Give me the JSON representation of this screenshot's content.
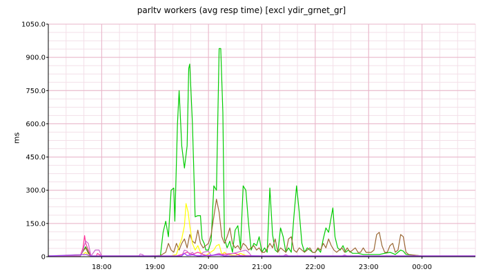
{
  "chart_data": {
    "type": "line",
    "title": "parltv workers (avg resp time) [excl ydir_grnet_gr]",
    "ylabel": "ms",
    "xlabel": "",
    "ylim": [
      0,
      1050
    ],
    "xlim": [
      17.0,
      25.0
    ],
    "grid": true,
    "legend": "none",
    "y_ticks": [
      "0",
      "150.0",
      "300.0",
      "450.0",
      "600.0",
      "750.0",
      "900.0",
      "1050.0"
    ],
    "y_tick_values": [
      0,
      150,
      300,
      450,
      600,
      750,
      900,
      1050
    ],
    "x_ticks": [
      "18:00",
      "19:00",
      "20:00",
      "21:00",
      "22:00",
      "23:00",
      "00:00"
    ],
    "x_tick_values": [
      18,
      19,
      20,
      21,
      22,
      23,
      24
    ],
    "series": [
      {
        "color": "#00cc00",
        "points": [
          [
            17.0,
            3
          ],
          [
            17.6,
            3
          ],
          [
            17.65,
            25
          ],
          [
            17.7,
            45
          ],
          [
            17.75,
            20
          ],
          [
            17.8,
            3
          ],
          [
            18.6,
            3
          ],
          [
            18.9,
            3
          ],
          [
            19.1,
            5
          ],
          [
            19.15,
            110
          ],
          [
            19.2,
            160
          ],
          [
            19.25,
            90
          ],
          [
            19.3,
            300
          ],
          [
            19.35,
            310
          ],
          [
            19.37,
            160
          ],
          [
            19.42,
            600
          ],
          [
            19.45,
            750
          ],
          [
            19.5,
            500
          ],
          [
            19.55,
            400
          ],
          [
            19.6,
            500
          ],
          [
            19.63,
            850
          ],
          [
            19.65,
            870
          ],
          [
            19.7,
            600
          ],
          [
            19.75,
            180
          ],
          [
            19.8,
            185
          ],
          [
            19.85,
            185
          ],
          [
            19.88,
            80
          ],
          [
            19.92,
            60
          ],
          [
            19.95,
            30
          ],
          [
            20.0,
            30
          ],
          [
            20.05,
            70
          ],
          [
            20.1,
            320
          ],
          [
            20.15,
            300
          ],
          [
            20.2,
            940
          ],
          [
            20.23,
            940
          ],
          [
            20.27,
            650
          ],
          [
            20.3,
            80
          ],
          [
            20.35,
            40
          ],
          [
            20.4,
            70
          ],
          [
            20.45,
            20
          ],
          [
            20.5,
            120
          ],
          [
            20.55,
            140
          ],
          [
            20.6,
            40
          ],
          [
            20.65,
            320
          ],
          [
            20.7,
            300
          ],
          [
            20.75,
            150
          ],
          [
            20.8,
            30
          ],
          [
            20.85,
            60
          ],
          [
            20.9,
            50
          ],
          [
            20.95,
            90
          ],
          [
            21.0,
            20
          ],
          [
            21.05,
            40
          ],
          [
            21.1,
            20
          ],
          [
            21.15,
            310
          ],
          [
            21.2,
            100
          ],
          [
            21.25,
            30
          ],
          [
            21.3,
            20
          ],
          [
            21.35,
            130
          ],
          [
            21.4,
            90
          ],
          [
            21.45,
            20
          ],
          [
            21.5,
            40
          ],
          [
            21.55,
            20
          ],
          [
            21.6,
            180
          ],
          [
            21.65,
            320
          ],
          [
            21.7,
            200
          ],
          [
            21.75,
            60
          ],
          [
            21.8,
            20
          ],
          [
            21.85,
            40
          ],
          [
            21.9,
            30
          ],
          [
            21.95,
            20
          ],
          [
            22.0,
            20
          ],
          [
            22.05,
            35
          ],
          [
            22.1,
            20
          ],
          [
            22.15,
            80
          ],
          [
            22.2,
            130
          ],
          [
            22.25,
            110
          ],
          [
            22.3,
            180
          ],
          [
            22.33,
            220
          ],
          [
            22.37,
            90
          ],
          [
            22.42,
            40
          ],
          [
            22.47,
            30
          ],
          [
            22.52,
            50
          ],
          [
            22.57,
            20
          ],
          [
            22.62,
            30
          ],
          [
            22.7,
            15
          ],
          [
            22.8,
            15
          ],
          [
            22.9,
            10
          ],
          [
            23.0,
            10
          ],
          [
            23.2,
            10
          ],
          [
            23.4,
            20
          ],
          [
            23.5,
            10
          ],
          [
            23.6,
            30
          ],
          [
            23.65,
            25
          ],
          [
            23.7,
            10
          ],
          [
            24.0,
            3
          ],
          [
            25.0,
            3
          ]
        ]
      },
      {
        "color": "#996633",
        "points": [
          [
            17.0,
            3
          ],
          [
            17.6,
            3
          ],
          [
            17.65,
            25
          ],
          [
            17.7,
            40
          ],
          [
            17.75,
            15
          ],
          [
            17.8,
            3
          ],
          [
            18.9,
            3
          ],
          [
            19.1,
            5
          ],
          [
            19.2,
            20
          ],
          [
            19.25,
            60
          ],
          [
            19.3,
            30
          ],
          [
            19.35,
            20
          ],
          [
            19.4,
            60
          ],
          [
            19.45,
            30
          ],
          [
            19.5,
            60
          ],
          [
            19.55,
            80
          ],
          [
            19.6,
            40
          ],
          [
            19.65,
            100
          ],
          [
            19.7,
            70
          ],
          [
            19.75,
            60
          ],
          [
            19.8,
            120
          ],
          [
            19.85,
            60
          ],
          [
            19.9,
            40
          ],
          [
            20.0,
            60
          ],
          [
            20.05,
            100
          ],
          [
            20.1,
            180
          ],
          [
            20.15,
            260
          ],
          [
            20.2,
            200
          ],
          [
            20.25,
            90
          ],
          [
            20.3,
            60
          ],
          [
            20.35,
            90
          ],
          [
            20.4,
            130
          ],
          [
            20.45,
            60
          ],
          [
            20.5,
            40
          ],
          [
            20.55,
            50
          ],
          [
            20.6,
            30
          ],
          [
            20.65,
            60
          ],
          [
            20.7,
            50
          ],
          [
            20.75,
            30
          ],
          [
            20.8,
            40
          ],
          [
            20.85,
            50
          ],
          [
            20.9,
            30
          ],
          [
            20.95,
            40
          ],
          [
            21.0,
            20
          ],
          [
            21.05,
            20
          ],
          [
            21.1,
            35
          ],
          [
            21.15,
            60
          ],
          [
            21.2,
            40
          ],
          [
            21.25,
            80
          ],
          [
            21.3,
            20
          ],
          [
            21.35,
            40
          ],
          [
            21.4,
            30
          ],
          [
            21.45,
            20
          ],
          [
            21.5,
            80
          ],
          [
            21.55,
            90
          ],
          [
            21.6,
            30
          ],
          [
            21.65,
            20
          ],
          [
            21.7,
            40
          ],
          [
            21.75,
            30
          ],
          [
            21.8,
            20
          ],
          [
            21.9,
            40
          ],
          [
            21.95,
            20
          ],
          [
            22.0,
            20
          ],
          [
            22.05,
            40
          ],
          [
            22.1,
            30
          ],
          [
            22.15,
            60
          ],
          [
            22.2,
            40
          ],
          [
            22.25,
            80
          ],
          [
            22.3,
            50
          ],
          [
            22.35,
            30
          ],
          [
            22.4,
            20
          ],
          [
            22.45,
            30
          ],
          [
            22.5,
            40
          ],
          [
            22.55,
            20
          ],
          [
            22.6,
            40
          ],
          [
            22.65,
            20
          ],
          [
            22.7,
            30
          ],
          [
            22.75,
            40
          ],
          [
            22.8,
            20
          ],
          [
            22.85,
            20
          ],
          [
            22.9,
            40
          ],
          [
            22.95,
            20
          ],
          [
            23.0,
            20
          ],
          [
            23.05,
            20
          ],
          [
            23.1,
            30
          ],
          [
            23.15,
            100
          ],
          [
            23.2,
            110
          ],
          [
            23.25,
            50
          ],
          [
            23.3,
            20
          ],
          [
            23.35,
            20
          ],
          [
            23.4,
            50
          ],
          [
            23.45,
            60
          ],
          [
            23.5,
            20
          ],
          [
            23.55,
            30
          ],
          [
            23.6,
            100
          ],
          [
            23.65,
            90
          ],
          [
            23.7,
            20
          ],
          [
            23.75,
            10
          ],
          [
            24.0,
            3
          ],
          [
            25.0,
            3
          ]
        ]
      },
      {
        "color": "#ffff00",
        "points": [
          [
            17.0,
            3
          ],
          [
            17.65,
            10
          ],
          [
            17.7,
            20
          ],
          [
            17.75,
            5
          ],
          [
            17.8,
            3
          ],
          [
            19.3,
            3
          ],
          [
            19.4,
            10
          ],
          [
            19.45,
            50
          ],
          [
            19.5,
            80
          ],
          [
            19.55,
            140
          ],
          [
            19.58,
            240
          ],
          [
            19.62,
            200
          ],
          [
            19.65,
            140
          ],
          [
            19.7,
            60
          ],
          [
            19.75,
            30
          ],
          [
            19.8,
            50
          ],
          [
            19.85,
            20
          ],
          [
            19.9,
            10
          ],
          [
            19.95,
            5
          ],
          [
            20.1,
            30
          ],
          [
            20.15,
            50
          ],
          [
            20.2,
            55
          ],
          [
            20.25,
            10
          ],
          [
            20.3,
            20
          ],
          [
            20.35,
            10
          ],
          [
            20.5,
            5
          ],
          [
            20.6,
            15
          ],
          [
            20.7,
            5
          ],
          [
            21.0,
            3
          ],
          [
            25.0,
            3
          ]
        ]
      },
      {
        "color": "#ff3399",
        "points": [
          [
            17.0,
            3
          ],
          [
            17.6,
            3
          ],
          [
            17.65,
            40
          ],
          [
            17.68,
            95
          ],
          [
            17.7,
            60
          ],
          [
            17.75,
            30
          ],
          [
            17.8,
            3
          ],
          [
            17.9,
            3
          ],
          [
            17.92,
            15
          ],
          [
            17.95,
            10
          ],
          [
            18.0,
            3
          ],
          [
            19.4,
            3
          ],
          [
            19.5,
            10
          ],
          [
            19.6,
            20
          ],
          [
            19.7,
            10
          ],
          [
            19.8,
            20
          ],
          [
            19.9,
            10
          ],
          [
            20.0,
            3
          ],
          [
            20.2,
            10
          ],
          [
            20.5,
            15
          ],
          [
            20.6,
            5
          ],
          [
            21.0,
            3
          ],
          [
            25.0,
            3
          ]
        ]
      },
      {
        "color": "#cc66cc",
        "points": [
          [
            17.0,
            3
          ],
          [
            17.6,
            3
          ],
          [
            17.65,
            30
          ],
          [
            17.7,
            70
          ],
          [
            17.75,
            60
          ],
          [
            17.8,
            3
          ],
          [
            17.88,
            30
          ],
          [
            17.95,
            30
          ],
          [
            18.0,
            3
          ],
          [
            18.7,
            3
          ],
          [
            18.72,
            12
          ],
          [
            18.76,
            10
          ],
          [
            18.8,
            3
          ],
          [
            19.5,
            3
          ],
          [
            19.55,
            30
          ],
          [
            19.6,
            25
          ],
          [
            19.65,
            10
          ],
          [
            19.7,
            20
          ],
          [
            19.75,
            5
          ],
          [
            19.85,
            5
          ],
          [
            19.9,
            20
          ],
          [
            20.0,
            25
          ],
          [
            20.05,
            5
          ],
          [
            20.2,
            15
          ],
          [
            20.3,
            5
          ],
          [
            20.7,
            30
          ],
          [
            20.75,
            20
          ],
          [
            20.8,
            5
          ],
          [
            21.0,
            3
          ],
          [
            21.4,
            3
          ],
          [
            21.45,
            10
          ],
          [
            21.5,
            3
          ],
          [
            22.5,
            3
          ],
          [
            22.55,
            8
          ],
          [
            22.6,
            3
          ],
          [
            25.0,
            3
          ]
        ]
      },
      {
        "color": "#9933ff",
        "points": [
          [
            17.0,
            3
          ],
          [
            17.7,
            10
          ],
          [
            17.8,
            3
          ],
          [
            19.5,
            3
          ],
          [
            19.55,
            15
          ],
          [
            19.6,
            5
          ],
          [
            19.7,
            8
          ],
          [
            19.8,
            3
          ],
          [
            20.2,
            8
          ],
          [
            20.3,
            3
          ],
          [
            25.0,
            3
          ]
        ]
      }
    ]
  }
}
